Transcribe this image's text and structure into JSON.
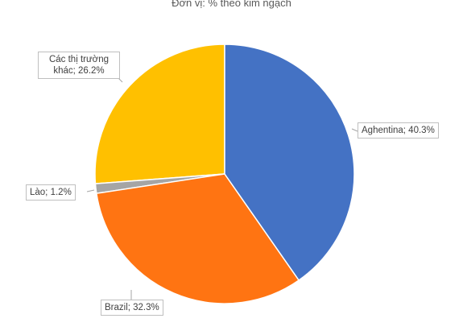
{
  "chart_data": {
    "type": "pie",
    "title": "Đơn vị: % theo kim ngạch",
    "values": [
      40.3,
      32.3,
      1.2,
      26.2
    ],
    "value_labels": [
      "Aghentina; 40.3%",
      "Brazil; 32.3%",
      "Lào; 1.2%",
      "Các thị trường khác; 26.2%"
    ],
    "colors": [
      "#4472c4",
      "#ff7412",
      "#a5a5a5",
      "#ffc000"
    ]
  }
}
